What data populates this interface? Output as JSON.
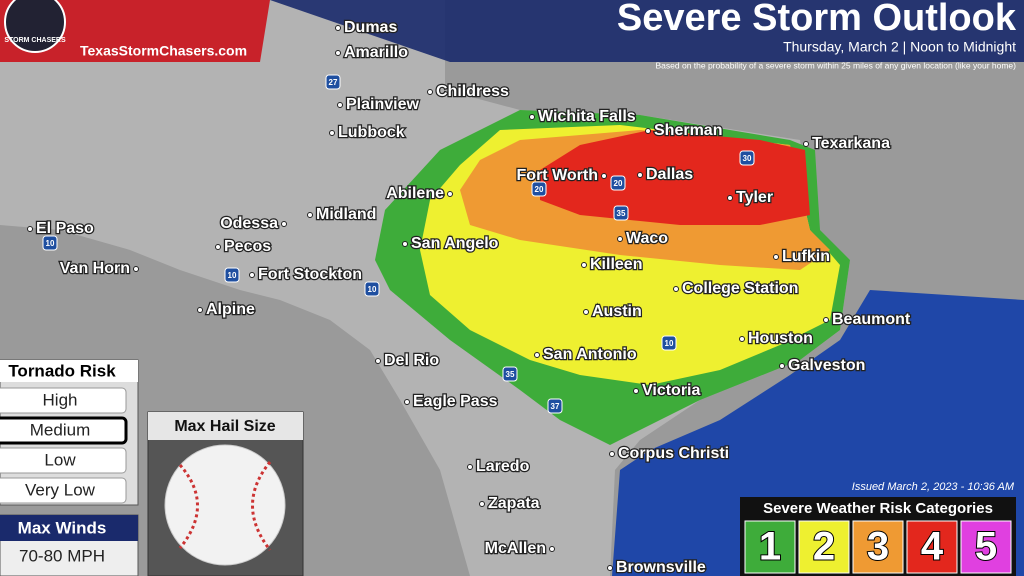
{
  "header": {
    "title": "Severe Storm Outlook",
    "subtitle": "Thursday, March 2 | Noon to Midnight",
    "note": "Based on the probability of a severe storm within 25 miles of any given location (like your home)"
  },
  "logo": {
    "site": "TexasStormChasers.com",
    "badge": "STORM CHASERS"
  },
  "cities": [
    "Dumas",
    "Amarillo",
    "Childress",
    "Plainview",
    "Lubbock",
    "Wichita Falls",
    "Sherman",
    "Texarkana",
    "Fort Worth",
    "Dallas",
    "Tyler",
    "Abilene",
    "Midland",
    "Odessa",
    "El Paso",
    "Pecos",
    "San Angelo",
    "Waco",
    "Lufkin",
    "Killeen",
    "Van Horn",
    "Fort Stockton",
    "College Station",
    "Alpine",
    "Austin",
    "Beaumont",
    "Houston",
    "Del Rio",
    "San Antonio",
    "Galveston",
    "Victoria",
    "Eagle Pass",
    "Corpus Christi",
    "Laredo",
    "Zapata",
    "McAllen",
    "Brownsville"
  ],
  "highways": [
    "27",
    "20",
    "20",
    "35",
    "30",
    "10",
    "10",
    "10",
    "10",
    "35",
    "37"
  ],
  "tornado_risk": {
    "title": "Tornado Risk",
    "levels": [
      "High",
      "Medium",
      "Low",
      "Very Low"
    ],
    "selected_index": 1
  },
  "max_winds": {
    "title": "Max Winds",
    "value": "70-80 MPH"
  },
  "max_hail": {
    "title": "Max Hail Size"
  },
  "issued": "Issued March 2, 2023 - 10:36 AM",
  "categories": {
    "title": "Severe Weather Risk Categories",
    "levels": [
      "1",
      "2",
      "3",
      "4",
      "5"
    ]
  }
}
